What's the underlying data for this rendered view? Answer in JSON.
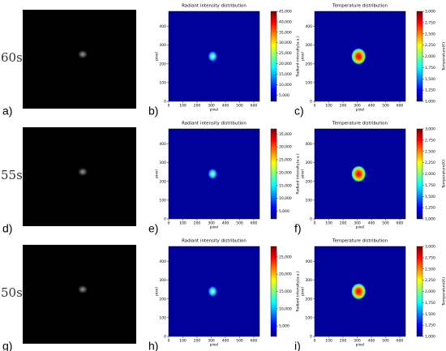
{
  "photos": [
    {
      "time": "60s",
      "caption": "a)"
    },
    {
      "time": "55s",
      "caption": "d)"
    },
    {
      "time": "50s",
      "caption": "g)"
    }
  ],
  "chart_data": [
    {
      "type": "heatmap",
      "caption": "b)",
      "title": "Radiant intensity distribution",
      "xlabel": "pixel",
      "ylabel": "pixel",
      "colorbar_label": "Radiant intensity(a.u.)",
      "xlim": [
        0,
        640
      ],
      "ylim": [
        0,
        480
      ],
      "xticks": [
        0,
        100,
        200,
        300,
        400,
        500,
        600
      ],
      "yticks": [
        0,
        100,
        200,
        300,
        400
      ],
      "clim": [
        2000,
        45000
      ],
      "cticks": [
        {
          "value": 5000,
          "label": "5,000"
        },
        {
          "value": 10000,
          "label": "10,000"
        },
        {
          "value": 15000,
          "label": "15,000"
        },
        {
          "value": 20000,
          "label": "20,000"
        },
        {
          "value": 25000,
          "label": "25,000"
        },
        {
          "value": 30000,
          "label": "30,000"
        },
        {
          "value": 35000,
          "label": "35,000"
        },
        {
          "value": 40000,
          "label": "40,000"
        },
        {
          "value": 45000,
          "label": "45,000"
        }
      ]
    },
    {
      "type": "heatmap",
      "caption": "c)",
      "title": "Temperature distribution",
      "xlabel": "pixel",
      "ylabel": "pixel",
      "colorbar_label": "Temperature(K)",
      "xlim": [
        0,
        640
      ],
      "ylim": [
        0,
        480
      ],
      "xticks": [
        0,
        100,
        200,
        300,
        400,
        500,
        600
      ],
      "yticks": [
        0,
        100,
        200,
        300,
        400
      ],
      "clim": [
        1000,
        3000
      ],
      "cticks": [
        {
          "value": 1000,
          "label": "1,000"
        },
        {
          "value": 1250,
          "label": "1,250"
        },
        {
          "value": 1500,
          "label": "1,500"
        },
        {
          "value": 1750,
          "label": "1,750"
        },
        {
          "value": 2000,
          "label": "2,000"
        },
        {
          "value": 2250,
          "label": "2,250"
        },
        {
          "value": 2500,
          "label": "2,500"
        },
        {
          "value": 2750,
          "label": "2,750"
        },
        {
          "value": 3000,
          "label": "3,000"
        }
      ]
    },
    {
      "type": "heatmap",
      "caption": "e)",
      "title": "Radiant intensity distribution",
      "xlabel": "pixel",
      "ylabel": "pixel",
      "colorbar_label": "Radiant intensity(a.u.)",
      "xlim": [
        0,
        640
      ],
      "ylim": [
        0,
        480
      ],
      "xticks": [
        0,
        100,
        200,
        300,
        400,
        500,
        600
      ],
      "yticks": [
        0,
        100,
        200,
        300,
        400
      ],
      "clim": [
        2000,
        37000
      ],
      "cticks": [
        {
          "value": 5000,
          "label": "5,000"
        },
        {
          "value": 10000,
          "label": "10,000"
        },
        {
          "value": 15000,
          "label": "15,000"
        },
        {
          "value": 20000,
          "label": "20,000"
        },
        {
          "value": 25000,
          "label": "25,000"
        },
        {
          "value": 30000,
          "label": "30,000"
        },
        {
          "value": 35000,
          "label": "35,000"
        }
      ]
    },
    {
      "type": "heatmap",
      "caption": "f)",
      "title": "Temperature distribution",
      "xlabel": "pixel",
      "ylabel": "pixel",
      "colorbar_label": "Temperature(K)",
      "xlim": [
        0,
        640
      ],
      "ylim": [
        0,
        480
      ],
      "xticks": [
        0,
        100,
        200,
        300,
        400,
        500,
        600
      ],
      "yticks": [
        0,
        100,
        200,
        300,
        400
      ],
      "clim": [
        1000,
        3000
      ],
      "cticks": [
        {
          "value": 1000,
          "label": "1,000"
        },
        {
          "value": 1250,
          "label": "1,250"
        },
        {
          "value": 1500,
          "label": "1,500"
        },
        {
          "value": 1750,
          "label": "1,750"
        },
        {
          "value": 2000,
          "label": "2,000"
        },
        {
          "value": 2250,
          "label": "2,250"
        },
        {
          "value": 2500,
          "label": "2,500"
        },
        {
          "value": 2750,
          "label": "2,750"
        },
        {
          "value": 3000,
          "label": "3,000"
        }
      ]
    },
    {
      "type": "heatmap",
      "caption": "h)",
      "title": "Radiant intensity distribution",
      "xlabel": "pixel",
      "ylabel": "pixel",
      "colorbar_label": "Radiant intensity(a.u.)",
      "xlim": [
        0,
        640
      ],
      "ylim": [
        0,
        480
      ],
      "xticks": [
        0,
        100,
        200,
        300,
        400,
        500,
        600
      ],
      "yticks": [
        0,
        100,
        200,
        300,
        400
      ],
      "clim": [
        2000,
        28000
      ],
      "cticks": [
        {
          "value": 5000,
          "label": "5,000"
        },
        {
          "value": 10000,
          "label": "10,000"
        },
        {
          "value": 15000,
          "label": "15,000"
        },
        {
          "value": 20000,
          "label": "20,000"
        },
        {
          "value": 25000,
          "label": "25,000"
        }
      ]
    },
    {
      "type": "heatmap",
      "caption": "i)",
      "title": "Temperature distribution",
      "xlabel": "pixel",
      "ylabel": "pixel",
      "colorbar_label": "Temperature(K)",
      "xlim": [
        0,
        640
      ],
      "ylim": [
        0,
        480
      ],
      "xticks": [
        0,
        100,
        200,
        300,
        400,
        500,
        600
      ],
      "yticks": [
        0,
        100,
        200,
        300,
        400
      ],
      "clim": [
        1000,
        3000
      ],
      "cticks": [
        {
          "value": 1000,
          "label": "1,000"
        },
        {
          "value": 1250,
          "label": "1,250"
        },
        {
          "value": 1500,
          "label": "1,500"
        },
        {
          "value": 1750,
          "label": "1,750"
        },
        {
          "value": 2000,
          "label": "2,000"
        },
        {
          "value": 2250,
          "label": "2,250"
        },
        {
          "value": 2500,
          "label": "2,500"
        },
        {
          "value": 2750,
          "label": "2,750"
        },
        {
          "value": 3000,
          "label": "3,000"
        }
      ]
    }
  ]
}
